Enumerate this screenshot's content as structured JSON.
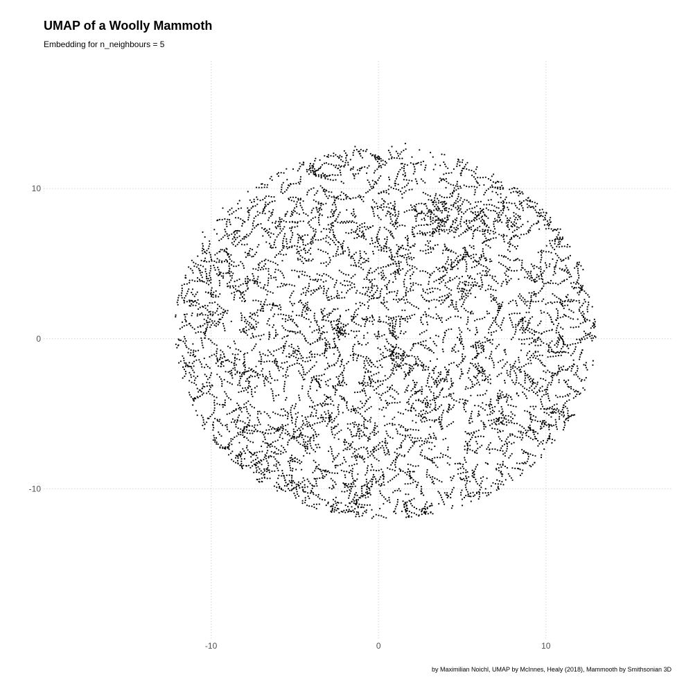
{
  "chart_data": {
    "type": "scatter",
    "title": "UMAP of a Woolly Mammoth",
    "subtitle": "Embedding for n_neighbours = 5",
    "caption": "by Maximilian Noichl, UMAP by McInnes, Healy (2018), Mammooth by Smithsonian 3D",
    "xlabel": "",
    "ylabel": "",
    "xlim": [
      -20,
      17.5
    ],
    "ylim": [
      -20,
      18.5
    ],
    "x_ticks": [
      {
        "value": -10,
        "label": "-10"
      },
      {
        "value": 0,
        "label": "0"
      },
      {
        "value": 10,
        "label": "10"
      }
    ],
    "y_ticks": [
      {
        "value": 10,
        "label": "10"
      },
      {
        "value": 0,
        "label": "0"
      },
      {
        "value": -10,
        "label": "-10"
      }
    ],
    "grid": true,
    "legend": "none",
    "point_color": "#000000",
    "series": [
      {
        "cloud": {
          "shape": "filled ellipse of small short strands",
          "center": [
            0.4,
            0.4
          ],
          "radius_x": 12.6,
          "radius_y": 12.4,
          "approx_points": 9000
        },
        "points": [
          [
            -11.9,
            -0.1
          ],
          [
            -11.6,
            2.4
          ],
          [
            -11.1,
            3.3
          ],
          [
            -11.0,
            -4.0
          ],
          [
            -11.3,
            -1.6
          ],
          [
            -10.8,
            5.5
          ],
          [
            -10.9,
            -4.8
          ],
          [
            -10.5,
            7.1
          ],
          [
            -10.4,
            -6.0
          ],
          [
            -9.6,
            7.9
          ],
          [
            -9.2,
            -7.3
          ],
          [
            -8.3,
            9.2
          ],
          [
            -8.0,
            -8.0
          ],
          [
            -7.0,
            10.3
          ],
          [
            -6.4,
            10.8
          ],
          [
            -6.0,
            -9.3
          ],
          [
            -5.6,
            -9.8
          ],
          [
            -4.7,
            11.7
          ],
          [
            -4.0,
            -10.2
          ],
          [
            -3.0,
            12.1
          ],
          [
            -2.3,
            12.2
          ],
          [
            -1.4,
            12.8
          ],
          [
            -2.5,
            -11.1
          ],
          [
            -1.6,
            -11.2
          ],
          [
            -0.7,
            12.6
          ],
          [
            -0.4,
            -11.4
          ],
          [
            0.8,
            12.8
          ],
          [
            1.6,
            13.0
          ],
          [
            1.4,
            -11.5
          ],
          [
            2.0,
            12.1
          ],
          [
            2.4,
            -11.8
          ],
          [
            3.4,
            11.6
          ],
          [
            3.6,
            -11.0
          ],
          [
            4.5,
            11.3
          ],
          [
            5.0,
            -10.7
          ],
          [
            5.9,
            10.4
          ],
          [
            6.4,
            -10.0
          ],
          [
            7.3,
            9.4
          ],
          [
            7.6,
            -9.4
          ],
          [
            8.4,
            8.1
          ],
          [
            8.8,
            -8.3
          ],
          [
            9.6,
            7.3
          ],
          [
            9.8,
            -7.0
          ],
          [
            10.4,
            5.3
          ],
          [
            10.8,
            -5.2
          ],
          [
            11.4,
            4.1
          ],
          [
            11.5,
            -3.2
          ],
          [
            12.0,
            2.4
          ],
          [
            12.4,
            -1.6
          ],
          [
            12.6,
            0.3
          ],
          [
            11.9,
            1.3
          ],
          [
            12.4,
            -2.6
          ],
          [
            12.3,
            2.6
          ],
          [
            12.0,
            -3.7
          ],
          [
            11.5,
            3.7
          ],
          [
            -11.5,
            1.2
          ],
          [
            -11.3,
            -2.8
          ],
          [
            -10.2,
            -5.3
          ],
          [
            -10.1,
            6.5
          ],
          [
            -9.3,
            8.7
          ],
          [
            -5.1,
            11.3
          ],
          [
            -7.8,
            9.8
          ],
          [
            -3.5,
            11.9
          ],
          [
            -6.8,
            -8.8
          ],
          [
            -3.0,
            -10.9
          ],
          [
            0.3,
            -11.0
          ],
          [
            3.1,
            12.4
          ],
          [
            2.8,
            -11.6
          ],
          [
            4.9,
            11.0
          ],
          [
            6.8,
            9.8
          ]
        ]
      }
    ]
  }
}
